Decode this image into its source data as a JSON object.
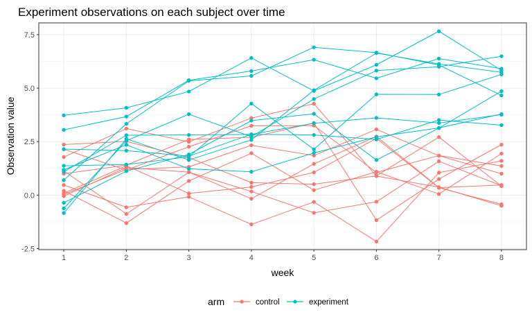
{
  "chart_data": {
    "type": "line",
    "title": "Experiment observations on each subject over time",
    "xlabel": "week",
    "ylabel": "Observation value",
    "x": [
      1,
      2,
      3,
      4,
      5,
      6,
      7,
      8
    ],
    "xlim": [
      0.6,
      8.4
    ],
    "ylim": [
      -2.55,
      8.05
    ],
    "yticks": [
      -2.5,
      0,
      2.5,
      5,
      7.5
    ],
    "ytick_labels": [
      "-2.5",
      "0.0",
      "2.5",
      "5.0",
      "7.5"
    ],
    "grid": true,
    "legend": {
      "title": "arm",
      "position": "bottom",
      "entries": [
        {
          "label": "control",
          "color": "#F8766D"
        },
        {
          "label": "experiment",
          "color": "#00BFC4"
        }
      ]
    },
    "colors": {
      "control": "#F8766D",
      "experiment": "#00BFC4"
    },
    "series": [
      {
        "arm": "control",
        "values": [
          0.2,
          -1.31,
          0.66,
          1.96,
          0.23,
          1.09,
          0.05,
          1.94
        ]
      },
      {
        "arm": "control",
        "values": [
          1.13,
          -0.88,
          1.07,
          0.17,
          -0.83,
          -0.31,
          1.58,
          0.44
        ]
      },
      {
        "arm": "control",
        "values": [
          2.14,
          1.17,
          2.26,
          3.24,
          3.25,
          1.06,
          1.85,
          1.36
        ]
      },
      {
        "arm": "control",
        "values": [
          -0.05,
          1.29,
          1.07,
          -0.17,
          1.46,
          2.74,
          0.35,
          0.47
        ]
      },
      {
        "arm": "control",
        "values": [
          2.36,
          2.51,
          1.75,
          0.58,
          0.51,
          0.9,
          2.71,
          0.42
        ]
      },
      {
        "arm": "control",
        "values": [
          1.78,
          3.11,
          2.49,
          3.6,
          4.27,
          0.89,
          0.37,
          -0.5
        ]
      },
      {
        "arm": "control",
        "values": [
          0.47,
          -0.57,
          -0.08,
          -1.37,
          -0.32,
          -2.17,
          1.05,
          1.6
        ]
      },
      {
        "arm": "control",
        "values": [
          0.03,
          1.2,
          1.32,
          2.33,
          1.85,
          3.07,
          1.84,
          1.0
        ]
      },
      {
        "arm": "control",
        "values": [
          0.09,
          1.37,
          0.08,
          0.38,
          1.06,
          2.65,
          0.34,
          -0.43
        ]
      },
      {
        "arm": "control",
        "values": [
          1.0,
          1.4,
          2.6,
          2.7,
          3.37,
          -1.17,
          0.75,
          2.36
        ]
      },
      {
        "arm": "experiment",
        "values": [
          3.05,
          3.67,
          5.37,
          5.8,
          6.33,
          5.46,
          6.38,
          5.91
        ]
      },
      {
        "arm": "experiment",
        "values": [
          -0.84,
          2.63,
          1.64,
          2.58,
          4.9,
          6.64,
          6.13,
          5.74
        ]
      },
      {
        "arm": "experiment",
        "values": [
          2.15,
          2.08,
          1.82,
          2.84,
          3.36,
          3.61,
          3.37,
          3.76
        ]
      },
      {
        "arm": "experiment",
        "values": [
          -0.62,
          2.54,
          3.78,
          2.73,
          4.49,
          5.82,
          6.0,
          6.49
        ]
      },
      {
        "arm": "experiment",
        "values": [
          0.7,
          3.33,
          5.34,
          5.57,
          6.91,
          6.66,
          6.08,
          4.66
        ]
      },
      {
        "arm": "experiment",
        "values": [
          3.73,
          4.08,
          4.84,
          6.41,
          4.87,
          6.09,
          7.66,
          5.83
        ]
      },
      {
        "arm": "experiment",
        "values": [
          1.18,
          2.35,
          1.23,
          1.09,
          1.97,
          2.72,
          3.14,
          3.79
        ]
      },
      {
        "arm": "experiment",
        "values": [
          1.37,
          1.43,
          1.79,
          4.28,
          2.14,
          4.71,
          4.7,
          5.64
        ]
      },
      {
        "arm": "experiment",
        "values": [
          1.09,
          2.8,
          2.81,
          2.84,
          2.81,
          2.6,
          3.51,
          3.27
        ]
      },
      {
        "arm": "experiment",
        "values": [
          -0.36,
          1.12,
          1.9,
          3.48,
          3.8,
          1.64,
          3.13,
          4.86
        ]
      }
    ]
  }
}
